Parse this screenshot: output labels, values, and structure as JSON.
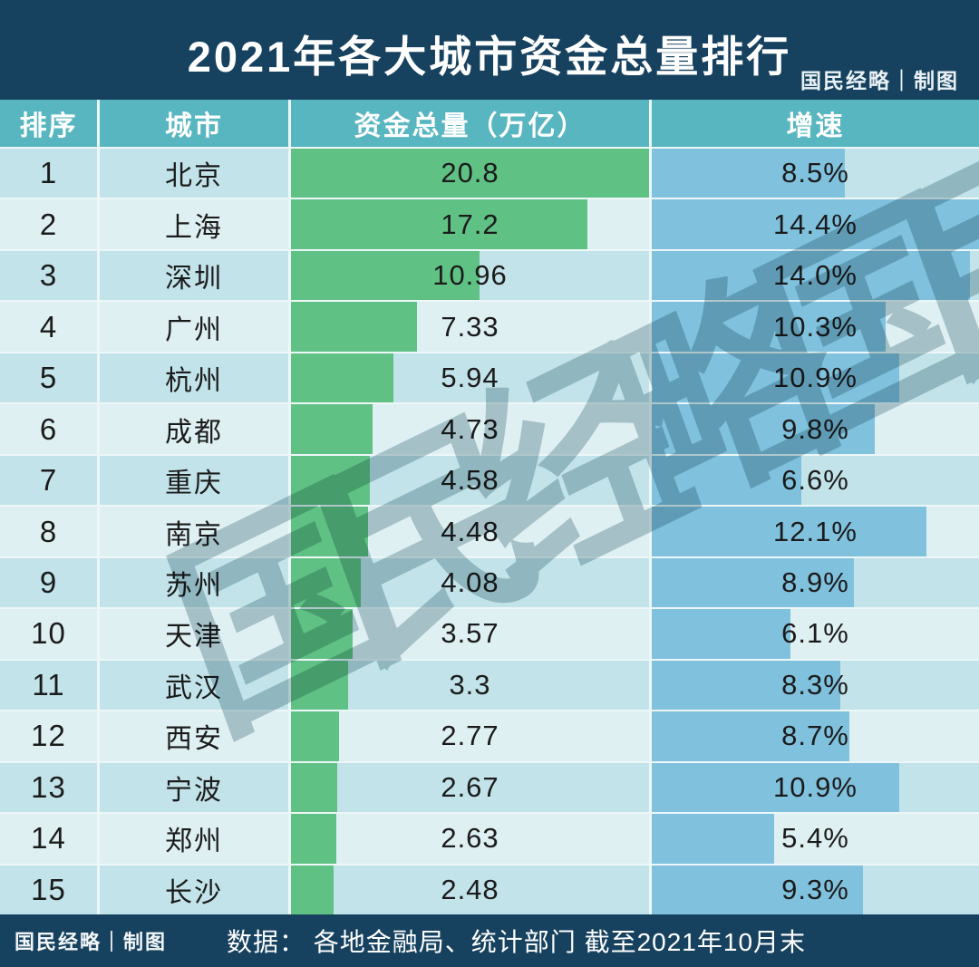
{
  "header": {
    "title": "2021年各大城市资金总量排行",
    "credit": "国民经略｜制图"
  },
  "table": {
    "columns": [
      "排序",
      "城市",
      "资金总量（万亿）",
      "增速"
    ],
    "rows": [
      {
        "rank": "1",
        "city": "北京",
        "amount": "20.8",
        "growth": "8.5%"
      },
      {
        "rank": "2",
        "city": "上海",
        "amount": "17.2",
        "growth": "14.4%"
      },
      {
        "rank": "3",
        "city": "深圳",
        "amount": "10.96",
        "growth": "14.0%"
      },
      {
        "rank": "4",
        "city": "广州",
        "amount": "7.33",
        "growth": "10.3%"
      },
      {
        "rank": "5",
        "city": "杭州",
        "amount": "5.94",
        "growth": "10.9%"
      },
      {
        "rank": "6",
        "city": "成都",
        "amount": "4.73",
        "growth": "9.8%"
      },
      {
        "rank": "7",
        "city": "重庆",
        "amount": "4.58",
        "growth": "6.6%"
      },
      {
        "rank": "8",
        "city": "南京",
        "amount": "4.48",
        "growth": "12.1%"
      },
      {
        "rank": "9",
        "city": "苏州",
        "amount": "4.08",
        "growth": "8.9%"
      },
      {
        "rank": "10",
        "city": "天津",
        "amount": "3.57",
        "growth": "6.1%"
      },
      {
        "rank": "11",
        "city": "武汉",
        "amount": "3.3",
        "growth": "8.3%"
      },
      {
        "rank": "12",
        "city": "西安",
        "amount": "2.77",
        "growth": "8.7%"
      },
      {
        "rank": "13",
        "city": "宁波",
        "amount": "2.67",
        "growth": "10.9%"
      },
      {
        "rank": "14",
        "city": "郑州",
        "amount": "2.63",
        "growth": "5.4%"
      },
      {
        "rank": "15",
        "city": "长沙",
        "amount": "2.48",
        "growth": "9.3%"
      }
    ]
  },
  "watermark": {
    "text": "国民经略国民"
  },
  "footer": {
    "credit": "国民经略｜制图",
    "source": "数据：  各地金融局、统计部门  截至2021年10月末"
  },
  "colors": {
    "band_navy": "#17425f",
    "header_teal": "#58b6c0",
    "row_odd": "#c2e3e9",
    "row_even": "#dff0f3",
    "grid_gap": "#edf7f8",
    "bar_green": "#5fc284",
    "bar_blue": "#80c1dd",
    "text_dark": "#1b1b1b",
    "text_white": "#ffffff",
    "watermark": "#31616f"
  },
  "chart_data": {
    "type": "bar",
    "title": "2021年各大城市资金总量排行",
    "categories": [
      "北京",
      "上海",
      "深圳",
      "广州",
      "杭州",
      "成都",
      "重庆",
      "南京",
      "苏州",
      "天津",
      "武汉",
      "西安",
      "宁波",
      "郑州",
      "长沙"
    ],
    "series": [
      {
        "name": "资金总量（万亿）",
        "values": [
          20.8,
          17.2,
          10.96,
          7.33,
          5.94,
          4.73,
          4.58,
          4.48,
          4.08,
          3.57,
          3.3,
          2.77,
          2.67,
          2.63,
          2.48
        ],
        "bar_scale_max": 20.8,
        "color": "#5fc284"
      },
      {
        "name": "增速",
        "unit": "%",
        "values": [
          8.5,
          14.4,
          14.0,
          10.3,
          10.9,
          9.8,
          6.6,
          12.1,
          8.9,
          6.1,
          8.3,
          8.7,
          10.9,
          5.4,
          9.3
        ],
        "bar_scale_max": 14.4,
        "color": "#80c1dd"
      }
    ],
    "ranks": [
      1,
      2,
      3,
      4,
      5,
      6,
      7,
      8,
      9,
      10,
      11,
      12,
      13,
      14,
      15
    ],
    "legend_position": "none",
    "grid": false,
    "orientation": "horizontal",
    "source": "各地金融局、统计部门 截至2021年10月末"
  }
}
